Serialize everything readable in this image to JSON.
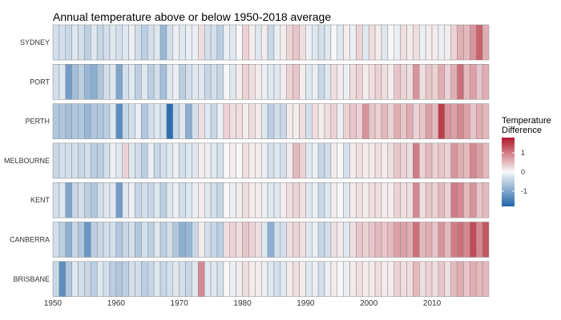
{
  "chart_data": {
    "type": "heatmap",
    "title": "Annual temperature above or below 1950-2018 average",
    "xlabel": "",
    "ylabel": "",
    "x_start": 1950,
    "x_end": 2018,
    "x_ticks": [
      1950,
      1960,
      1970,
      1980,
      1990,
      2000,
      2010
    ],
    "color_limits": [
      -1.8,
      1.8
    ],
    "legend": {
      "title_line1": "Temperature",
      "title_line2": "Difference",
      "ticks": [
        1,
        0,
        -1
      ],
      "tick_labels": [
        "1",
        "0",
        "-1"
      ],
      "placement": "right"
    },
    "colors": {
      "low": "#2166ac",
      "mid": "#f7f7f7",
      "high": "#b2182b"
    },
    "rows": [
      {
        "name": "SYDNEY",
        "values": [
          -0.3,
          -0.3,
          -0.4,
          -0.2,
          -0.3,
          -0.5,
          -0.2,
          -0.4,
          -0.3,
          -0.2,
          -0.3,
          -0.2,
          -0.1,
          -0.3,
          -0.5,
          -0.3,
          -0.2,
          -0.8,
          -0.3,
          -0.1,
          -0.2,
          -0.1,
          -0.1,
          0.2,
          -0.3,
          -0.3,
          -0.5,
          -0.1,
          -0.2,
          0.0,
          0.3,
          0.1,
          -0.2,
          0.1,
          -0.4,
          -0.1,
          0.1,
          0.3,
          0.4,
          0.2,
          -0.1,
          -0.2,
          -0.3,
          -0.2,
          0.0,
          -0.2,
          0.1,
          -0.1,
          0.3,
          -0.2,
          0.2,
          0.1,
          -0.2,
          0.0,
          -0.1,
          0.2,
          0.1,
          0.2,
          -0.1,
          0.1,
          0.1,
          -0.1,
          0.1,
          0.3,
          0.6,
          0.5,
          0.8,
          1.2,
          0.6
        ]
      },
      {
        "name": "PORT",
        "values": [
          -0.3,
          -0.2,
          -1.1,
          -0.7,
          -0.5,
          -0.8,
          -0.9,
          -0.6,
          -0.3,
          -0.2,
          -1.0,
          -0.3,
          -0.2,
          -0.5,
          -0.2,
          -0.5,
          -0.3,
          -0.7,
          -0.2,
          -0.1,
          -0.5,
          -0.3,
          -0.2,
          -0.2,
          -0.4,
          -0.3,
          -0.4,
          0.0,
          -0.2,
          0.1,
          0.3,
          0.2,
          0.1,
          -0.1,
          -0.2,
          -0.2,
          0.1,
          0.3,
          0.4,
          0.1,
          -0.2,
          -0.1,
          -0.4,
          -0.2,
          0.2,
          0.1,
          -0.1,
          0.2,
          0.3,
          0.1,
          0.2,
          0.3,
          0.2,
          0.1,
          0.4,
          0.3,
          0.2,
          0.8,
          0.2,
          0.4,
          0.3,
          0.6,
          0.3,
          0.6,
          1.1,
          0.5,
          0.7,
          0.4,
          0.6
        ]
      },
      {
        "name": "PERTH",
        "values": [
          -0.6,
          -0.6,
          -0.7,
          -0.6,
          -0.6,
          -0.8,
          -0.6,
          -0.6,
          -0.5,
          -0.2,
          -1.3,
          -0.4,
          -0.3,
          -0.1,
          -0.6,
          -0.3,
          -0.2,
          -0.3,
          -1.7,
          -0.4,
          -0.2,
          -0.9,
          -0.3,
          0.2,
          -0.2,
          -0.4,
          -0.1,
          0.3,
          0.2,
          0.2,
          0.1,
          0.2,
          0.1,
          -0.2,
          -0.5,
          -0.3,
          -0.4,
          0.1,
          0.1,
          0.2,
          -0.3,
          0.2,
          0.1,
          0.2,
          0.3,
          -0.1,
          0.3,
          0.4,
          0.3,
          0.8,
          0.4,
          0.3,
          0.5,
          0.3,
          0.6,
          0.4,
          0.6,
          0.3,
          0.4,
          0.7,
          0.5,
          1.5,
          0.8,
          0.7,
          0.9,
          0.7,
          0.4,
          0.6,
          0.5
        ]
      },
      {
        "name": "MELBOURNE",
        "values": [
          -0.4,
          -0.3,
          -0.3,
          -0.3,
          -0.4,
          -0.3,
          -0.5,
          -0.5,
          -0.3,
          -0.1,
          -0.2,
          0.3,
          -0.2,
          -0.3,
          -0.5,
          -0.1,
          -0.4,
          -0.3,
          -0.2,
          -0.1,
          -0.3,
          -0.2,
          -0.2,
          0.1,
          -0.1,
          -0.2,
          -0.3,
          0.0,
          0.1,
          0.0,
          0.2,
          0.1,
          0.1,
          -0.1,
          -0.3,
          -0.2,
          -0.3,
          0.1,
          0.5,
          0.3,
          -0.2,
          -0.1,
          -0.4,
          -0.3,
          0.1,
          0.0,
          -0.3,
          0.1,
          0.2,
          0.1,
          0.1,
          0.2,
          0.1,
          0.2,
          0.4,
          0.3,
          0.2,
          1.0,
          0.3,
          0.5,
          0.3,
          0.4,
          0.3,
          0.8,
          0.6,
          0.5,
          0.9,
          0.7,
          0.5
        ]
      },
      {
        "name": "KENT",
        "values": [
          -0.3,
          -0.2,
          -1.0,
          -0.4,
          -0.3,
          -0.5,
          -0.6,
          -0.3,
          -0.2,
          -0.2,
          -1.1,
          -0.2,
          -0.1,
          -0.4,
          -0.3,
          -0.4,
          -0.2,
          -0.5,
          -0.2,
          -0.1,
          -0.3,
          -0.2,
          -0.1,
          0.1,
          -0.2,
          -0.3,
          -0.4,
          0.0,
          -0.1,
          0.1,
          0.2,
          0.1,
          0.1,
          -0.1,
          -0.2,
          -0.2,
          0.1,
          0.2,
          0.3,
          0.2,
          -0.2,
          -0.1,
          -0.4,
          -0.2,
          0.1,
          0.0,
          -0.2,
          0.1,
          0.2,
          0.1,
          0.2,
          0.2,
          0.1,
          0.1,
          0.3,
          0.2,
          0.2,
          0.9,
          0.2,
          0.4,
          0.3,
          0.5,
          0.3,
          1.0,
          0.9,
          0.5,
          0.8,
          0.4,
          0.5
        ]
      },
      {
        "name": "CANBERRA",
        "values": [
          -0.3,
          -0.5,
          -0.9,
          -0.4,
          -0.6,
          -1.2,
          -0.5,
          -0.4,
          -0.3,
          -0.3,
          -0.6,
          -0.4,
          -0.3,
          -0.6,
          -0.3,
          -0.5,
          -0.2,
          -0.5,
          -0.3,
          -0.6,
          -0.9,
          -0.8,
          -0.4,
          0.1,
          -0.3,
          -0.4,
          -0.5,
          0.2,
          0.3,
          0.2,
          0.4,
          0.3,
          0.2,
          -0.2,
          -0.9,
          -0.3,
          -0.3,
          0.2,
          0.3,
          0.2,
          -0.2,
          -0.1,
          -0.4,
          -0.3,
          0.2,
          0.1,
          -0.2,
          0.2,
          0.4,
          0.3,
          0.4,
          0.5,
          0.4,
          0.5,
          0.7,
          0.7,
          0.6,
          1.1,
          0.5,
          0.6,
          0.4,
          0.8,
          0.5,
          1.0,
          1.1,
          0.9,
          1.4,
          0.9,
          1.3
        ]
      },
      {
        "name": "BRISBANE",
        "values": [
          -0.4,
          -1.3,
          -0.6,
          -0.2,
          -0.3,
          -0.4,
          -0.5,
          -0.2,
          -0.3,
          -0.5,
          -0.6,
          -0.5,
          -0.3,
          -0.3,
          -0.5,
          -0.4,
          -0.2,
          -0.4,
          -0.3,
          -0.2,
          -0.3,
          -0.4,
          -0.2,
          0.9,
          -0.2,
          -0.2,
          -0.3,
          0.0,
          -0.1,
          0.1,
          0.2,
          0.1,
          0.1,
          -0.1,
          -0.2,
          -0.3,
          -0.2,
          0.1,
          0.2,
          0.1,
          -0.2,
          -0.1,
          -0.3,
          -0.1,
          0.1,
          0.0,
          -0.1,
          0.1,
          0.2,
          0.1,
          0.1,
          0.2,
          0.1,
          0.1,
          0.3,
          0.2,
          0.2,
          0.5,
          0.2,
          0.3,
          0.2,
          0.4,
          0.2,
          0.5,
          0.6,
          0.4,
          0.6,
          0.5,
          0.5
        ]
      }
    ]
  }
}
